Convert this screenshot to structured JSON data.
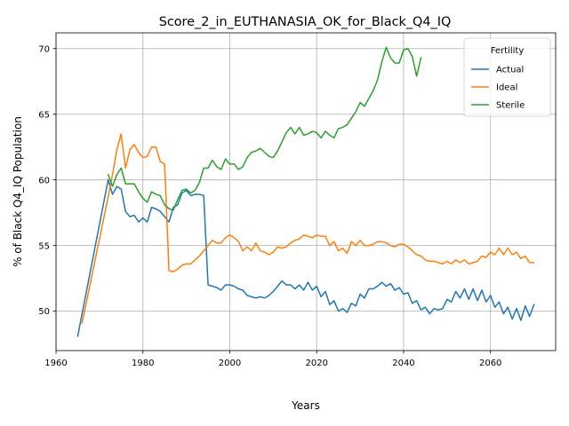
{
  "chart_data": {
    "type": "line",
    "title": "Score_2_in_EUTHANASIA_OK_for_Black_Q4_IQ",
    "xlabel": "Years",
    "ylabel": "% of Black Q4_IQ Population",
    "xlim": [
      1960,
      2075
    ],
    "ylim": [
      47,
      71.2
    ],
    "xticks": [
      1960,
      1980,
      2000,
      2020,
      2040,
      2060
    ],
    "yticks": [
      50,
      55,
      60,
      65,
      70
    ],
    "grid": true,
    "legend": {
      "title": "Fertility",
      "placement": "top-right"
    },
    "series": [
      {
        "name": "Actual",
        "color": "#1f77b4",
        "points": [
          [
            1965,
            48.1
          ],
          [
            1972,
            60.0
          ],
          [
            1973,
            58.9
          ],
          [
            1974,
            59.5
          ],
          [
            1975,
            59.3
          ],
          [
            1976,
            57.6
          ],
          [
            1977,
            57.2
          ],
          [
            1978,
            57.3
          ],
          [
            1979,
            56.8
          ],
          [
            1980,
            57.1
          ],
          [
            1981,
            56.8
          ],
          [
            1982,
            57.9
          ],
          [
            1983,
            57.8
          ],
          [
            1984,
            57.6
          ],
          [
            1985,
            57.2
          ],
          [
            1986,
            56.8
          ],
          [
            1987,
            57.9
          ],
          [
            1988,
            58.1
          ],
          [
            1989,
            59.0
          ],
          [
            1990,
            59.2
          ],
          [
            1991,
            58.8
          ],
          [
            1992,
            58.9
          ],
          [
            1993,
            58.9
          ],
          [
            1994,
            58.8
          ],
          [
            1995,
            52.0
          ],
          [
            1996,
            51.9
          ],
          [
            1997,
            51.8
          ],
          [
            1998,
            51.6
          ],
          [
            1999,
            52.0
          ],
          [
            2000,
            52.0
          ],
          [
            2001,
            51.9
          ],
          [
            2002,
            51.7
          ],
          [
            2003,
            51.6
          ],
          [
            2004,
            51.2
          ],
          [
            2005,
            51.1
          ],
          [
            2006,
            51.0
          ],
          [
            2007,
            51.1
          ],
          [
            2008,
            51.0
          ],
          [
            2009,
            51.2
          ],
          [
            2010,
            51.5
          ],
          [
            2011,
            51.9
          ],
          [
            2012,
            52.3
          ],
          [
            2013,
            52.0
          ],
          [
            2014,
            52.0
          ],
          [
            2015,
            51.7
          ],
          [
            2016,
            52.0
          ],
          [
            2017,
            51.6
          ],
          [
            2018,
            52.2
          ],
          [
            2019,
            51.6
          ],
          [
            2020,
            51.9
          ],
          [
            2021,
            51.1
          ],
          [
            2022,
            51.5
          ],
          [
            2023,
            50.5
          ],
          [
            2024,
            50.8
          ],
          [
            2025,
            50.0
          ],
          [
            2026,
            50.2
          ],
          [
            2027,
            49.9
          ],
          [
            2028,
            50.6
          ],
          [
            2029,
            50.4
          ],
          [
            2030,
            51.3
          ],
          [
            2031,
            51.0
          ],
          [
            2032,
            51.7
          ],
          [
            2033,
            51.7
          ],
          [
            2034,
            51.9
          ],
          [
            2035,
            52.2
          ],
          [
            2036,
            51.9
          ],
          [
            2037,
            52.1
          ],
          [
            2038,
            51.6
          ],
          [
            2039,
            51.8
          ],
          [
            2040,
            51.3
          ],
          [
            2041,
            51.4
          ],
          [
            2042,
            50.6
          ],
          [
            2043,
            50.8
          ],
          [
            2044,
            50.1
          ],
          [
            2045,
            50.3
          ],
          [
            2046,
            49.8
          ],
          [
            2047,
            50.2
          ],
          [
            2048,
            50.1
          ],
          [
            2049,
            50.2
          ],
          [
            2050,
            50.9
          ],
          [
            2051,
            50.7
          ],
          [
            2052,
            51.5
          ],
          [
            2053,
            51.0
          ],
          [
            2054,
            51.7
          ],
          [
            2055,
            50.9
          ],
          [
            2056,
            51.7
          ],
          [
            2057,
            50.8
          ],
          [
            2058,
            51.6
          ],
          [
            2059,
            50.7
          ],
          [
            2060,
            51.2
          ],
          [
            2061,
            50.3
          ],
          [
            2062,
            50.7
          ],
          [
            2063,
            49.8
          ],
          [
            2064,
            50.3
          ],
          [
            2065,
            49.4
          ],
          [
            2066,
            50.2
          ],
          [
            2067,
            49.3
          ],
          [
            2068,
            50.4
          ],
          [
            2069,
            49.6
          ],
          [
            2070,
            50.5
          ]
        ]
      },
      {
        "name": "Ideal",
        "color": "#ff7f0e",
        "points": [
          [
            1966,
            49.1
          ],
          [
            1972,
            58.7
          ],
          [
            1973,
            60.4
          ],
          [
            1974,
            62.3
          ],
          [
            1975,
            63.5
          ],
          [
            1976,
            60.9
          ],
          [
            1977,
            62.3
          ],
          [
            1978,
            62.7
          ],
          [
            1979,
            62.1
          ],
          [
            1980,
            61.7
          ],
          [
            1981,
            61.8
          ],
          [
            1982,
            62.5
          ],
          [
            1983,
            62.5
          ],
          [
            1984,
            61.4
          ],
          [
            1985,
            61.2
          ],
          [
            1986,
            53.1
          ],
          [
            1987,
            53.0
          ],
          [
            1988,
            53.2
          ],
          [
            1989,
            53.5
          ],
          [
            1990,
            53.6
          ],
          [
            1991,
            53.6
          ],
          [
            1992,
            53.9
          ],
          [
            1993,
            54.2
          ],
          [
            1994,
            54.6
          ],
          [
            1995,
            55.0
          ],
          [
            1996,
            55.4
          ],
          [
            1997,
            55.2
          ],
          [
            1998,
            55.2
          ],
          [
            1999,
            55.6
          ],
          [
            2000,
            55.8
          ],
          [
            2001,
            55.6
          ],
          [
            2002,
            55.3
          ],
          [
            2003,
            54.6
          ],
          [
            2004,
            54.9
          ],
          [
            2005,
            54.6
          ],
          [
            2006,
            55.2
          ],
          [
            2007,
            54.6
          ],
          [
            2008,
            54.5
          ],
          [
            2009,
            54.3
          ],
          [
            2010,
            54.5
          ],
          [
            2011,
            54.9
          ],
          [
            2012,
            54.8
          ],
          [
            2013,
            54.9
          ],
          [
            2014,
            55.2
          ],
          [
            2015,
            55.4
          ],
          [
            2016,
            55.5
          ],
          [
            2017,
            55.8
          ],
          [
            2018,
            55.7
          ],
          [
            2019,
            55.6
          ],
          [
            2020,
            55.8
          ],
          [
            2021,
            55.7
          ],
          [
            2022,
            55.7
          ],
          [
            2023,
            55.0
          ],
          [
            2024,
            55.3
          ],
          [
            2025,
            54.6
          ],
          [
            2026,
            54.8
          ],
          [
            2027,
            54.4
          ],
          [
            2028,
            55.3
          ],
          [
            2029,
            55.0
          ],
          [
            2030,
            55.4
          ],
          [
            2031,
            55.0
          ],
          [
            2032,
            55.0
          ],
          [
            2033,
            55.1
          ],
          [
            2034,
            55.3
          ],
          [
            2035,
            55.3
          ],
          [
            2036,
            55.2
          ],
          [
            2037,
            55.0
          ],
          [
            2038,
            54.9
          ],
          [
            2039,
            55.1
          ],
          [
            2040,
            55.1
          ],
          [
            2041,
            54.9
          ],
          [
            2042,
            54.6
          ],
          [
            2043,
            54.3
          ],
          [
            2044,
            54.2
          ],
          [
            2045,
            53.9
          ],
          [
            2046,
            53.8
          ],
          [
            2047,
            53.8
          ],
          [
            2048,
            53.7
          ],
          [
            2049,
            53.6
          ],
          [
            2050,
            53.8
          ],
          [
            2051,
            53.6
          ],
          [
            2052,
            53.9
          ],
          [
            2053,
            53.7
          ],
          [
            2054,
            53.9
          ],
          [
            2055,
            53.6
          ],
          [
            2056,
            53.7
          ],
          [
            2057,
            53.8
          ],
          [
            2058,
            54.2
          ],
          [
            2059,
            54.1
          ],
          [
            2060,
            54.5
          ],
          [
            2061,
            54.3
          ],
          [
            2062,
            54.8
          ],
          [
            2063,
            54.3
          ],
          [
            2064,
            54.8
          ],
          [
            2065,
            54.3
          ],
          [
            2066,
            54.5
          ],
          [
            2067,
            54.0
          ],
          [
            2068,
            54.2
          ],
          [
            2069,
            53.7
          ],
          [
            2070,
            53.7
          ]
        ]
      },
      {
        "name": "Sterile",
        "color": "#2ca02c",
        "points": [
          [
            1972,
            60.4
          ],
          [
            1973,
            59.5
          ],
          [
            1974,
            60.4
          ],
          [
            1975,
            60.9
          ],
          [
            1976,
            59.7
          ],
          [
            1977,
            59.7
          ],
          [
            1978,
            59.7
          ],
          [
            1979,
            59.1
          ],
          [
            1980,
            58.6
          ],
          [
            1981,
            58.3
          ],
          [
            1982,
            59.1
          ],
          [
            1983,
            58.9
          ],
          [
            1984,
            58.8
          ],
          [
            1985,
            58.1
          ],
          [
            1986,
            57.8
          ],
          [
            1987,
            57.7
          ],
          [
            1988,
            58.5
          ],
          [
            1989,
            59.2
          ],
          [
            1990,
            59.3
          ],
          [
            1991,
            59.0
          ],
          [
            1992,
            59.2
          ],
          [
            1993,
            59.8
          ],
          [
            1994,
            60.9
          ],
          [
            1995,
            60.9
          ],
          [
            1996,
            61.5
          ],
          [
            1997,
            61.0
          ],
          [
            1998,
            60.8
          ],
          [
            1999,
            61.6
          ],
          [
            2000,
            61.2
          ],
          [
            2001,
            61.2
          ],
          [
            2002,
            60.8
          ],
          [
            2003,
            61.0
          ],
          [
            2004,
            61.7
          ],
          [
            2005,
            62.1
          ],
          [
            2006,
            62.2
          ],
          [
            2007,
            62.4
          ],
          [
            2008,
            62.1
          ],
          [
            2009,
            61.8
          ],
          [
            2010,
            61.7
          ],
          [
            2011,
            62.2
          ],
          [
            2012,
            62.9
          ],
          [
            2013,
            63.6
          ],
          [
            2014,
            64.0
          ],
          [
            2015,
            63.5
          ],
          [
            2016,
            64.0
          ],
          [
            2017,
            63.4
          ],
          [
            2018,
            63.5
          ],
          [
            2019,
            63.7
          ],
          [
            2020,
            63.6
          ],
          [
            2021,
            63.2
          ],
          [
            2022,
            63.7
          ],
          [
            2023,
            63.4
          ],
          [
            2024,
            63.2
          ],
          [
            2025,
            63.9
          ],
          [
            2026,
            64.0
          ],
          [
            2027,
            64.2
          ],
          [
            2028,
            64.7
          ],
          [
            2029,
            65.2
          ],
          [
            2030,
            65.9
          ],
          [
            2031,
            65.6
          ],
          [
            2032,
            66.2
          ],
          [
            2033,
            66.8
          ],
          [
            2034,
            67.6
          ],
          [
            2035,
            69.0
          ],
          [
            2036,
            70.1
          ],
          [
            2037,
            69.3
          ],
          [
            2038,
            68.9
          ],
          [
            2039,
            68.9
          ],
          [
            2040,
            69.9
          ],
          [
            2041,
            70.0
          ],
          [
            2042,
            69.4
          ],
          [
            2043,
            67.9
          ],
          [
            2044,
            69.3
          ]
        ]
      }
    ]
  }
}
